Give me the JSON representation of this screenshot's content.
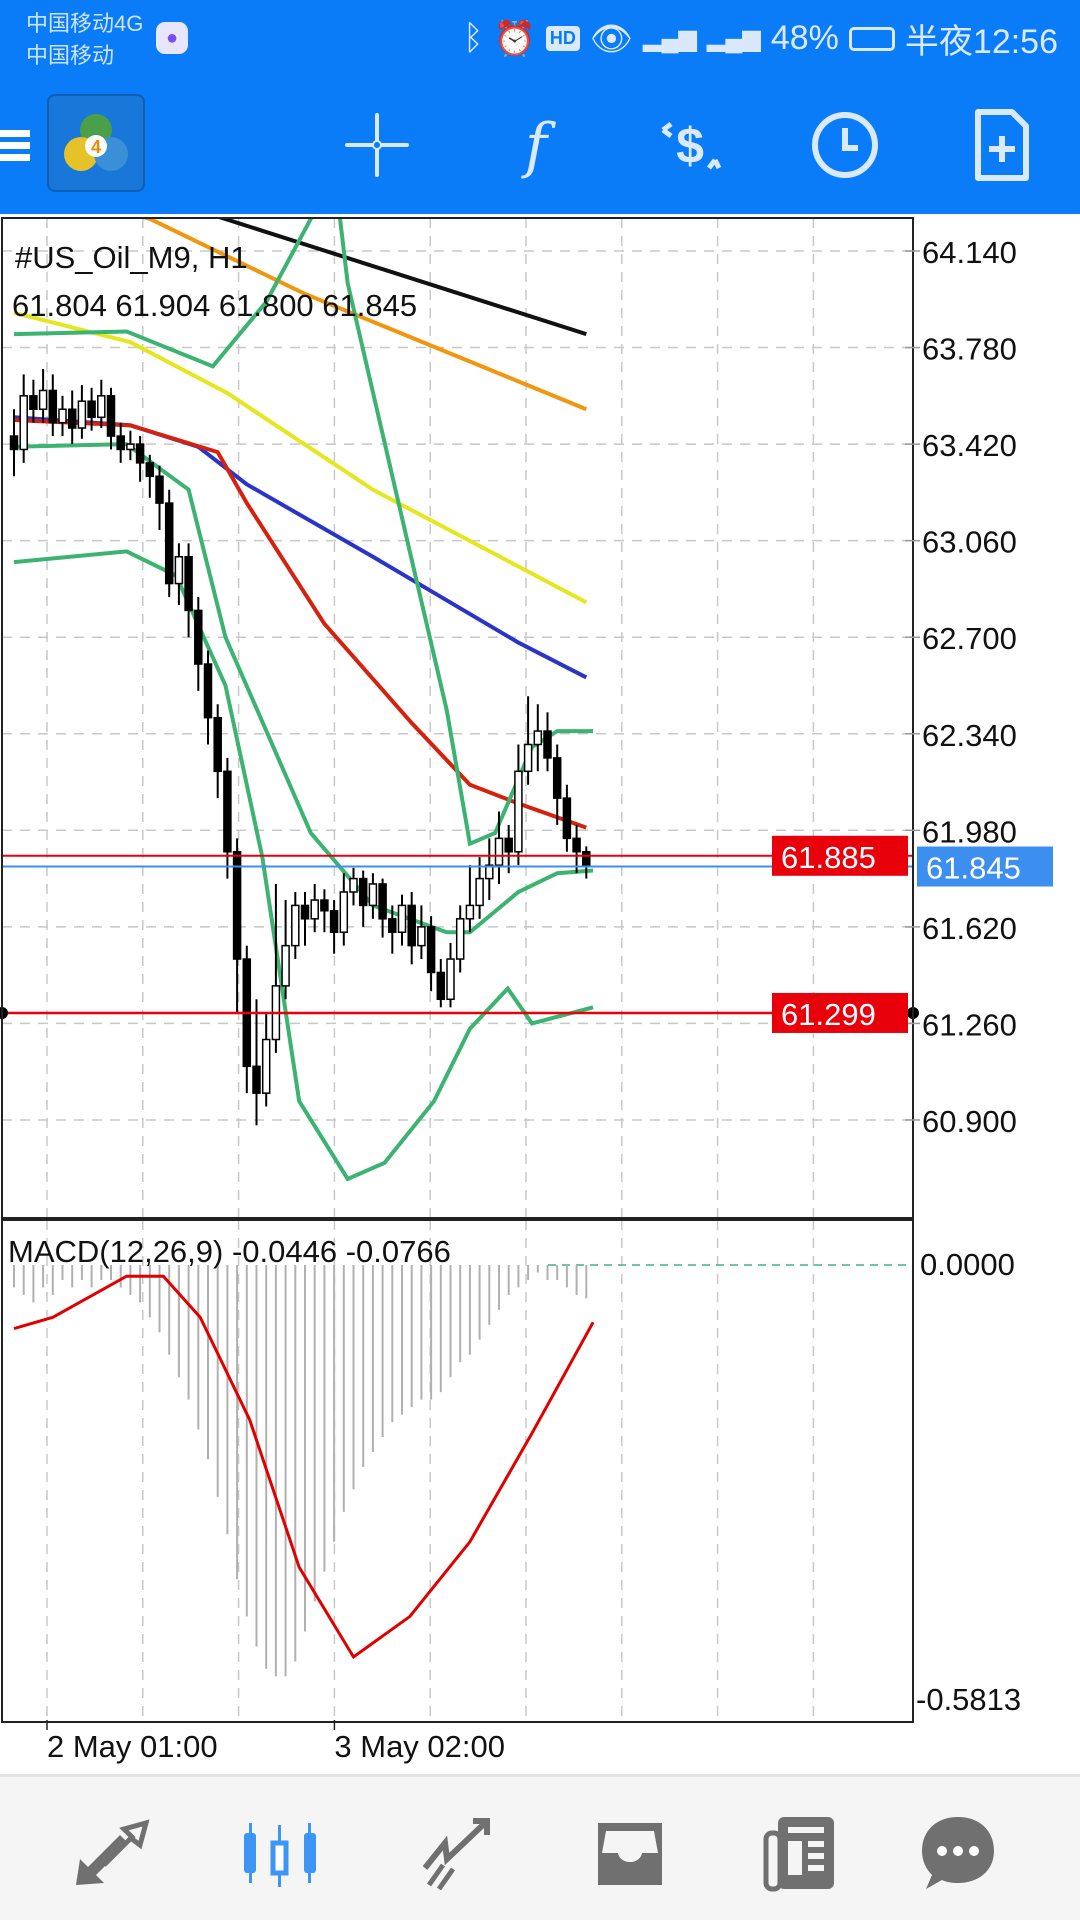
{
  "status_bar": {
    "carrier1": "中国移动4G",
    "carrier2": "中国移动",
    "battery": "48%",
    "time": "半夜12:56",
    "icons": [
      "bluetooth-icon",
      "alarm-icon",
      "hd-icon",
      "eye-icon",
      "signal-4g-icon",
      "signal-e-icon",
      "battery-icon"
    ]
  },
  "toolbar": {
    "icons": [
      "menu-icon",
      "mt4-logo",
      "crosshair-icon",
      "indicators-icon",
      "trade-icon",
      "timeframe-icon",
      "new-order-icon"
    ],
    "accent": "#0a7cf7"
  },
  "chart": {
    "symbol_label": "#US_Oil_M9, H1",
    "ohlc_label": "61.804 61.904 61.800 61.845",
    "price_ticks": [
      "64.140",
      "63.780",
      "63.420",
      "63.060",
      "62.700",
      "62.340",
      "61.980",
      "61.620",
      "61.260",
      "60.900"
    ],
    "price_tick_values": [
      64.14,
      63.78,
      63.42,
      63.06,
      62.7,
      62.34,
      61.98,
      61.62,
      61.26,
      60.9
    ],
    "ylim": [
      60.55,
      64.26
    ],
    "ask_line": {
      "label": "61.885",
      "value": 61.885,
      "color": "#e8000b"
    },
    "bid_line": {
      "label": "61.845",
      "value": 61.845,
      "color": "#3d8fef"
    },
    "level_line": {
      "label": "61.299",
      "value": 61.299,
      "color": "#e8000b"
    },
    "time_labels": [
      {
        "label": "2 May 01:00",
        "grid": 0
      },
      {
        "label": "3 May 02:00",
        "grid": 3
      }
    ]
  },
  "chart_data": [
    {
      "type": "candlestick",
      "open": [
        63.45,
        63.4,
        63.6,
        63.55,
        63.62,
        63.5,
        63.55,
        63.48,
        63.58,
        63.52,
        63.6,
        63.45,
        63.4,
        63.42,
        63.35,
        63.3,
        63.2,
        62.9,
        63.0,
        62.8,
        62.6,
        62.4,
        62.2,
        61.9,
        61.5,
        61.1,
        61.0,
        61.2,
        61.4,
        61.55,
        61.7,
        61.65,
        61.72,
        61.68,
        61.6,
        61.75,
        61.8,
        61.7,
        61.78,
        61.65,
        61.6,
        61.7,
        61.55,
        61.62,
        61.45,
        61.35,
        61.5,
        61.65,
        61.7,
        61.8,
        61.85,
        61.95,
        61.9,
        62.2,
        62.3,
        62.35,
        62.25,
        62.1,
        61.95,
        61.9
      ],
      "high": [
        63.55,
        63.68,
        63.66,
        63.7,
        63.68,
        63.6,
        63.62,
        63.64,
        63.63,
        63.66,
        63.63,
        63.5,
        63.47,
        63.45,
        63.38,
        63.34,
        63.25,
        63.05,
        63.05,
        62.85,
        62.65,
        62.45,
        62.25,
        61.95,
        61.55,
        61.35,
        61.3,
        61.78,
        61.72,
        61.75,
        61.75,
        61.78,
        61.76,
        61.72,
        61.82,
        61.84,
        61.83,
        61.82,
        61.8,
        61.7,
        61.74,
        61.75,
        61.7,
        61.66,
        61.5,
        61.56,
        61.7,
        61.85,
        61.88,
        61.95,
        62.05,
        62.0,
        62.3,
        62.48,
        62.45,
        62.42,
        62.3,
        62.15,
        62.0,
        61.92
      ],
      "low": [
        63.3,
        63.35,
        63.5,
        63.5,
        63.45,
        63.45,
        63.42,
        63.44,
        63.47,
        63.48,
        63.4,
        63.35,
        63.36,
        63.28,
        63.22,
        63.1,
        62.85,
        62.82,
        62.7,
        62.5,
        62.3,
        62.1,
        61.8,
        61.3,
        61.0,
        60.88,
        60.95,
        61.15,
        61.35,
        61.5,
        61.55,
        61.6,
        61.6,
        61.52,
        61.55,
        61.7,
        61.62,
        61.65,
        61.58,
        61.52,
        61.55,
        61.48,
        61.5,
        61.38,
        61.32,
        61.32,
        61.45,
        61.6,
        61.65,
        61.72,
        61.78,
        61.82,
        61.85,
        62.15,
        62.2,
        62.2,
        62.0,
        61.9,
        61.82,
        61.8
      ],
      "close": [
        63.4,
        63.6,
        63.55,
        63.62,
        63.5,
        63.55,
        63.48,
        63.58,
        63.52,
        63.6,
        63.45,
        63.4,
        63.42,
        63.35,
        63.3,
        63.2,
        62.9,
        63.0,
        62.8,
        62.6,
        62.4,
        62.2,
        61.9,
        61.5,
        61.1,
        61.0,
        61.2,
        61.4,
        61.55,
        61.7,
        61.65,
        61.72,
        61.68,
        61.6,
        61.75,
        61.8,
        61.7,
        61.78,
        61.65,
        61.6,
        61.7,
        61.55,
        61.62,
        61.45,
        61.35,
        61.5,
        61.65,
        61.7,
        61.8,
        61.85,
        61.95,
        61.9,
        62.2,
        62.3,
        62.35,
        62.25,
        62.1,
        61.95,
        61.9,
        61.845
      ],
      "overlays": [
        {
          "color": "#111111",
          "points": [
            [
              0,
              64.45
            ],
            [
              20,
              64.28
            ],
            [
              59,
              63.83
            ]
          ]
        },
        {
          "color": "#f0960f",
          "points": [
            [
              0,
              64.4
            ],
            [
              14,
              64.26
            ],
            [
              30,
              63.98
            ],
            [
              59,
              63.55
            ]
          ]
        },
        {
          "color": "#e6e61e",
          "points": [
            [
              0,
              63.91
            ],
            [
              12,
              63.8
            ],
            [
              22,
              63.61
            ],
            [
              37,
              63.25
            ],
            [
              59,
              62.83
            ]
          ]
        },
        {
          "color": "#2a35c8",
          "points": [
            [
              0,
              63.52
            ],
            [
              12,
              63.49
            ],
            [
              19,
              63.41
            ],
            [
              24,
              63.27
            ],
            [
              37,
              63.0
            ],
            [
              52,
              62.68
            ],
            [
              59,
              62.55
            ]
          ]
        },
        {
          "color": "#d4220f",
          "points": [
            [
              0,
              63.51
            ],
            [
              12,
              63.49
            ],
            [
              21,
              63.39
            ],
            [
              24,
              63.2
            ],
            [
              32,
              62.75
            ],
            [
              41,
              62.38
            ],
            [
              47,
              62.15
            ],
            [
              52,
              62.08
            ],
            [
              59,
              61.99
            ]
          ]
        },
        {
          "color": "#3cb371",
          "points": [
            [
              0,
              63.83
            ],
            [
              11.6,
              63.84
            ],
            [
              20.5,
              63.71
            ],
            [
              26,
              63.95
            ],
            [
              30.6,
              64.26
            ],
            [
              32.5,
              64.6
            ],
            [
              34.4,
              64.02
            ],
            [
              40.8,
              63.02
            ],
            [
              44.6,
              62.43
            ],
            [
              47,
              61.93
            ],
            [
              49.6,
              61.97
            ],
            [
              53.4,
              62.29
            ],
            [
              56,
              62.35
            ],
            [
              59.7,
              62.35
            ]
          ]
        },
        {
          "color": "#3cb371",
          "points": [
            [
              0,
              63.41
            ],
            [
              11.6,
              63.42
            ],
            [
              18,
              63.25
            ],
            [
              21.8,
              62.7
            ],
            [
              30.6,
              61.97
            ],
            [
              37,
              61.7
            ],
            [
              44.6,
              61.6
            ],
            [
              47,
              61.6
            ],
            [
              52,
              61.75
            ],
            [
              56,
              61.82
            ],
            [
              59.7,
              61.83
            ]
          ]
        },
        {
          "color": "#3cb371",
          "points": [
            [
              0,
              62.98
            ],
            [
              11.6,
              63.02
            ],
            [
              16.7,
              62.93
            ],
            [
              21.8,
              62.52
            ],
            [
              25.6,
              61.88
            ],
            [
              29.4,
              60.97
            ],
            [
              34.4,
              60.68
            ],
            [
              38.2,
              60.74
            ],
            [
              43.3,
              60.97
            ],
            [
              47,
              61.24
            ],
            [
              50.9,
              61.39
            ],
            [
              53.4,
              61.26
            ],
            [
              59.7,
              61.32
            ]
          ]
        }
      ]
    },
    {
      "type": "bar+line",
      "title": "MACD(12,26,9) -0.0446 -0.0766",
      "zero_label": "0.0000",
      "min_label": "-0.5813",
      "ylim": [
        -0.5813,
        0
      ],
      "histogram": [
        -0.03,
        -0.04,
        -0.05,
        -0.03,
        -0.04,
        -0.02,
        -0.03,
        -0.02,
        -0.03,
        -0.02,
        -0.02,
        -0.03,
        -0.04,
        -0.05,
        -0.07,
        -0.09,
        -0.12,
        -0.15,
        -0.18,
        -0.22,
        -0.26,
        -0.31,
        -0.36,
        -0.42,
        -0.47,
        -0.51,
        -0.54,
        -0.55,
        -0.55,
        -0.53,
        -0.49,
        -0.45,
        -0.41,
        -0.37,
        -0.33,
        -0.3,
        -0.27,
        -0.25,
        -0.23,
        -0.21,
        -0.2,
        -0.19,
        -0.18,
        -0.18,
        -0.17,
        -0.15,
        -0.13,
        -0.12,
        -0.1,
        -0.08,
        -0.06,
        -0.04,
        -0.03,
        -0.02,
        -0.01,
        -0.02,
        -0.02,
        -0.03,
        -0.04,
        -0.0446
      ],
      "signal_points": [
        [
          0,
          -0.085
        ],
        [
          4,
          -0.07
        ],
        [
          11.6,
          -0.015
        ],
        [
          15.4,
          -0.015
        ],
        [
          19.2,
          -0.07
        ],
        [
          24.3,
          -0.207
        ],
        [
          29.4,
          -0.404
        ],
        [
          35,
          -0.524
        ],
        [
          40.8,
          -0.47
        ],
        [
          47,
          -0.37
        ],
        [
          53.4,
          -0.225
        ],
        [
          59.7,
          -0.0766
        ]
      ],
      "histogram_color": "#b0b0b0",
      "signal_color": "#e00000"
    }
  ],
  "bottom_nav": {
    "items": [
      "quotes-icon",
      "chart-icon",
      "trade-icon",
      "history-icon",
      "news-icon",
      "messages-icon"
    ],
    "active": "chart-icon",
    "active_color": "#3d95f5",
    "inactive_color": "#707070"
  }
}
